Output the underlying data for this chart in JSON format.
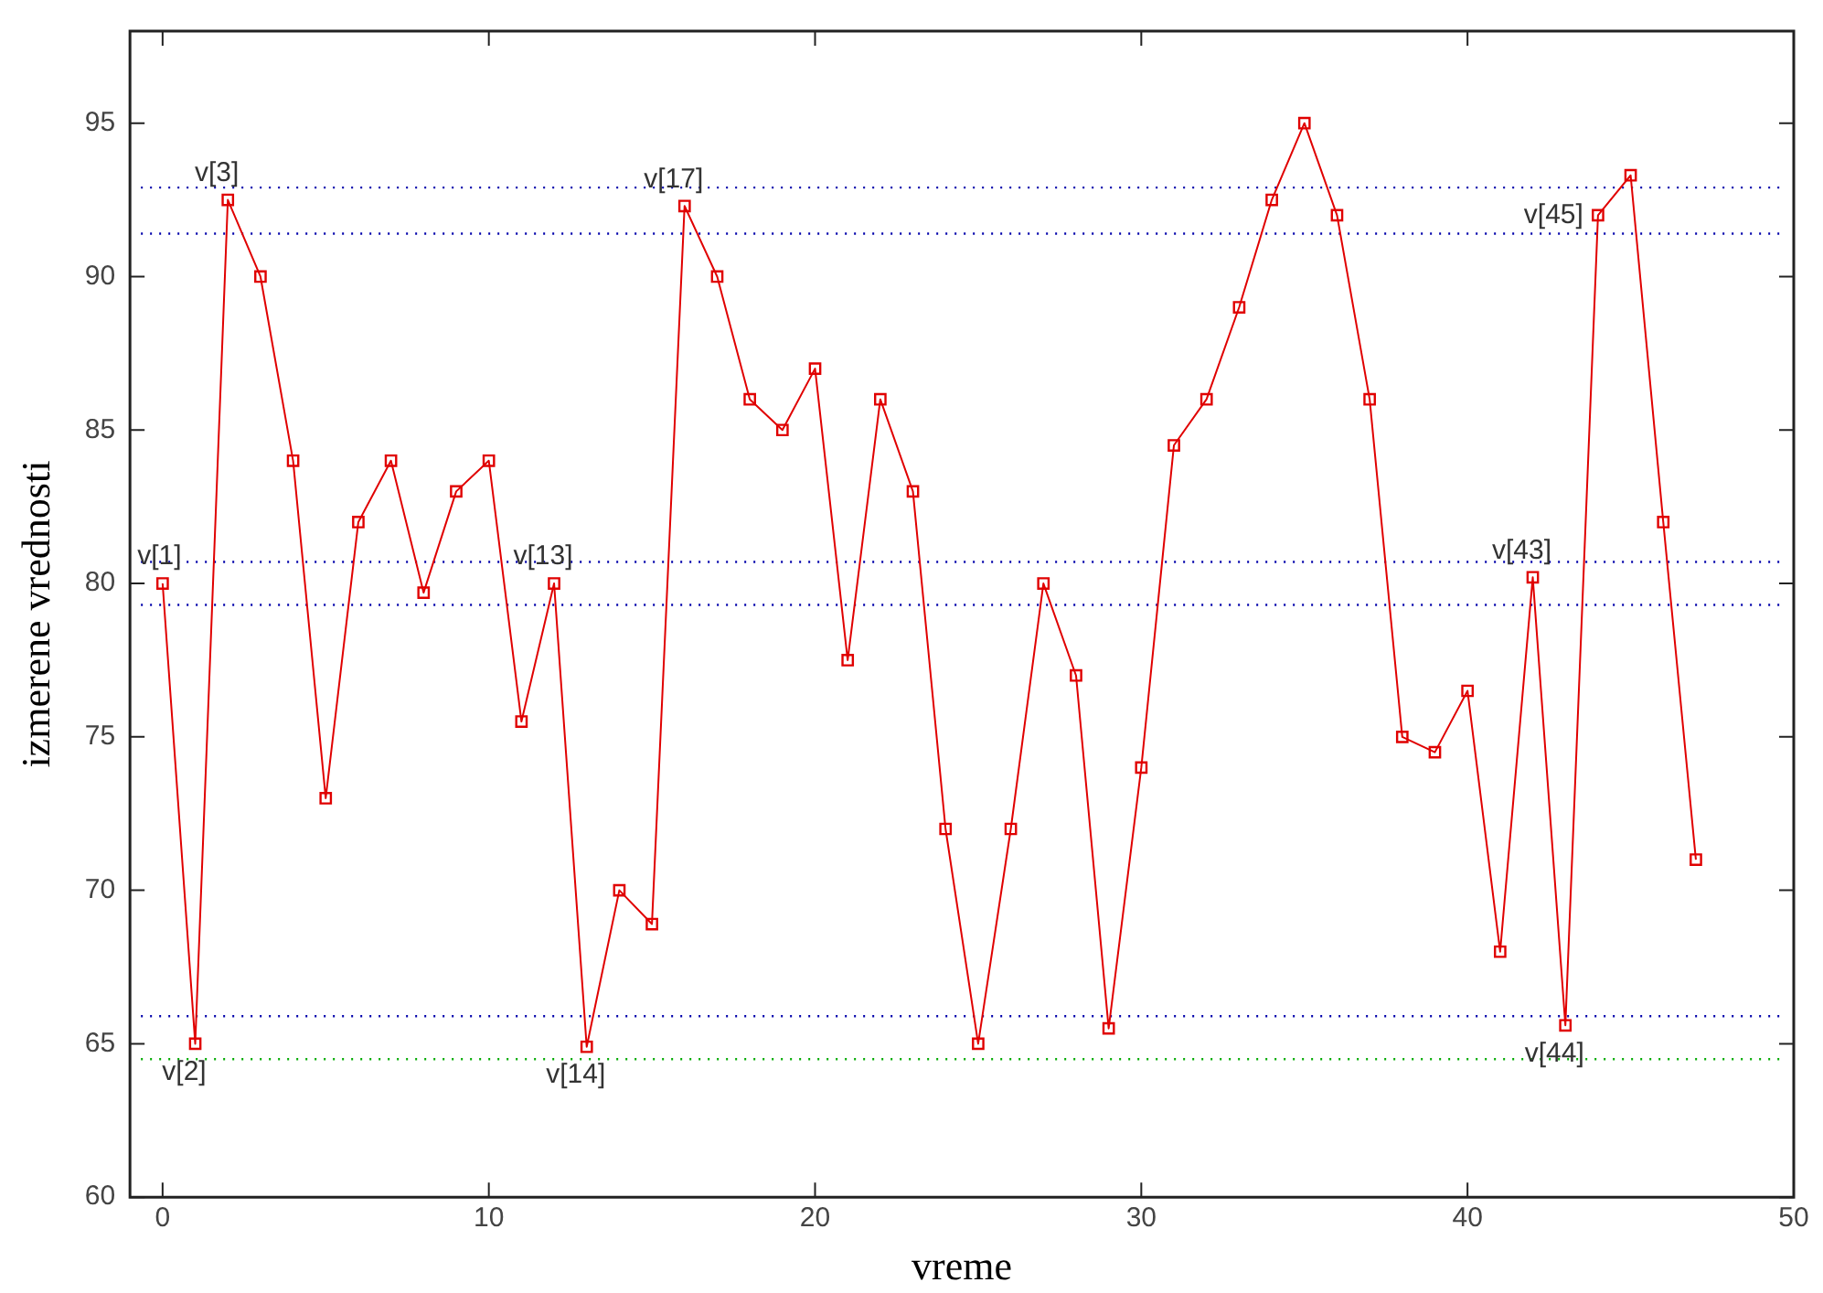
{
  "chart_data": {
    "type": "line",
    "xlabel": "vreme",
    "ylabel": "izmerene vrednosti",
    "x": [
      0,
      1,
      2,
      3,
      4,
      5,
      6,
      7,
      8,
      9,
      10,
      11,
      12,
      13,
      14,
      15,
      16,
      17,
      18,
      19,
      20,
      21,
      22,
      23,
      24,
      25,
      26,
      27,
      28,
      29,
      30,
      31,
      32,
      33,
      34,
      35,
      36,
      37,
      38,
      39,
      40,
      41,
      42,
      43,
      44,
      45,
      46,
      47
    ],
    "series": [
      {
        "color": "#e00000",
        "values": [
          80,
          65,
          92.5,
          90,
          84,
          73,
          82,
          84,
          79.7,
          83,
          84,
          75.5,
          80,
          64.9,
          70,
          68.9,
          92.3,
          90,
          86,
          85,
          87,
          77.5,
          86,
          83,
          72,
          65,
          72,
          80,
          77,
          65.5,
          74,
          84.5,
          86,
          89,
          92.5,
          95,
          92,
          86,
          75,
          74.5,
          76.5,
          68,
          80.2,
          65.6,
          92,
          93.3,
          82,
          71
        ]
      }
    ],
    "xlim": [
      -1,
      50
    ],
    "xticks": [
      0,
      10,
      20,
      30,
      40,
      50
    ],
    "ylim": [
      60,
      98
    ],
    "yticks": [
      60,
      65,
      70,
      75,
      80,
      85,
      90,
      95
    ],
    "grid": false,
    "legend": false,
    "marker": "square",
    "line_style": "solid",
    "ref_lines": [
      {
        "axis": "y",
        "value": 92.9,
        "color": "#0000aa",
        "line_style": "dotted"
      },
      {
        "axis": "y",
        "value": 91.4,
        "color": "#0000aa",
        "line_style": "dotted"
      },
      {
        "axis": "y",
        "value": 80.7,
        "color": "#0000aa",
        "line_style": "dotted"
      },
      {
        "axis": "y",
        "value": 79.3,
        "color": "#0000aa",
        "line_style": "dotted"
      },
      {
        "axis": "y",
        "value": 65.9,
        "color": "#0000aa",
        "line_style": "dotted"
      },
      {
        "axis": "y",
        "value": 64.5,
        "color": "#00aa00",
        "line_style": "dotted"
      }
    ],
    "annotations": [
      {
        "text": "v[1]",
        "x": 0,
        "y": 80
      },
      {
        "text": "v[2]",
        "x": 1,
        "y": 65
      },
      {
        "text": "v[3]",
        "x": 2,
        "y": 92.5
      },
      {
        "text": "v[13]",
        "x": 12,
        "y": 80
      },
      {
        "text": "v[14]",
        "x": 13,
        "y": 64.9
      },
      {
        "text": "v[17]",
        "x": 16,
        "y": 92.3
      },
      {
        "text": "v[43]",
        "x": 42,
        "y": 80.2
      },
      {
        "text": "v[44]",
        "x": 43,
        "y": 65.6
      },
      {
        "text": "v[45]",
        "x": 44,
        "y": 92
      }
    ]
  }
}
